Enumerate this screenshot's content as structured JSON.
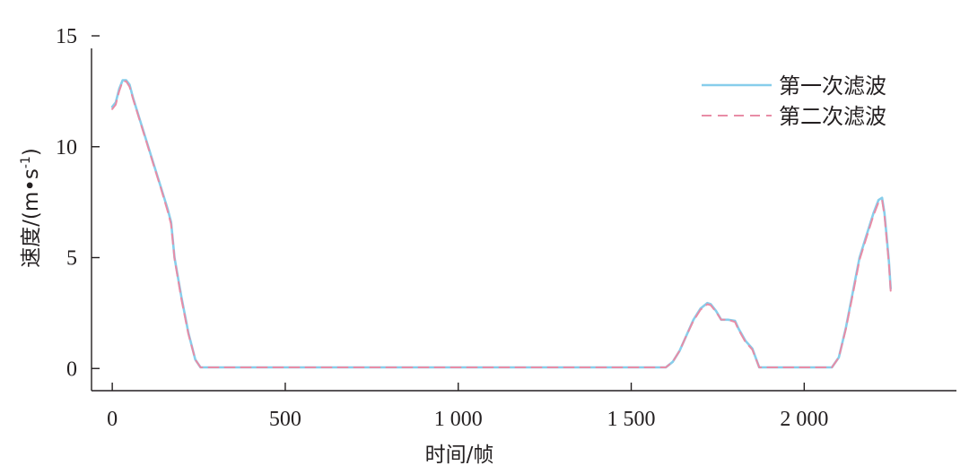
{
  "chart_data": {
    "type": "line",
    "title": "",
    "xlabel": "时间/帧",
    "ylabel": "速度/(m•s-1)",
    "ylabel_main": "速度/(m•s",
    "ylabel_sup": "-1",
    "ylabel_end": ")",
    "xlim": [
      -60,
      2440
    ],
    "ylim": [
      -1,
      15
    ],
    "xticks": [
      0,
      500,
      1000,
      1500,
      2000
    ],
    "xtick_labels": [
      "0",
      "500",
      "1 000",
      "1 500",
      "2 000"
    ],
    "yticks": [
      0,
      5,
      10,
      15
    ],
    "ytick_labels": [
      "0",
      "5",
      "10",
      "15"
    ],
    "grid": false,
    "legend_position": "top-right",
    "series": [
      {
        "name": "第一次滤波",
        "color": "#87ceeb",
        "style": "solid",
        "x": [
          0,
          10,
          20,
          30,
          40,
          50,
          60,
          80,
          100,
          120,
          140,
          160,
          170,
          180,
          200,
          220,
          240,
          255,
          270,
          300,
          500,
          1000,
          1500,
          1600,
          1620,
          1640,
          1660,
          1680,
          1700,
          1720,
          1730,
          1745,
          1760,
          1780,
          1800,
          1810,
          1830,
          1850,
          1870,
          1890,
          2000,
          2080,
          2100,
          2120,
          2140,
          2160,
          2180,
          2200,
          2215,
          2225,
          2232,
          2238,
          2245,
          2250
        ],
        "y": [
          11.8,
          12.0,
          12.6,
          13.0,
          13.0,
          12.8,
          12.2,
          11.2,
          10.2,
          9.2,
          8.2,
          7.2,
          6.6,
          5.0,
          3.2,
          1.6,
          0.4,
          0.05,
          0.05,
          0.05,
          0.05,
          0.05,
          0.05,
          0.05,
          0.3,
          0.8,
          1.5,
          2.2,
          2.7,
          2.95,
          2.9,
          2.6,
          2.2,
          2.2,
          2.15,
          1.8,
          1.25,
          0.9,
          0.05,
          0.05,
          0.05,
          0.05,
          0.5,
          1.8,
          3.4,
          5.0,
          6.0,
          7.0,
          7.6,
          7.7,
          7.0,
          6.0,
          4.8,
          3.6
        ]
      },
      {
        "name": "第二次滤波",
        "color": "#e88ca6",
        "style": "dashed",
        "x": [
          0,
          10,
          20,
          30,
          40,
          50,
          60,
          80,
          100,
          120,
          140,
          160,
          170,
          180,
          200,
          220,
          240,
          255,
          270,
          300,
          500,
          1000,
          1500,
          1600,
          1620,
          1640,
          1660,
          1680,
          1700,
          1720,
          1730,
          1745,
          1760,
          1780,
          1800,
          1810,
          1830,
          1850,
          1870,
          1890,
          2000,
          2080,
          2100,
          2120,
          2140,
          2160,
          2180,
          2200,
          2215,
          2225,
          2232,
          2238,
          2245,
          2250
        ],
        "y": [
          11.7,
          11.9,
          12.5,
          12.95,
          12.95,
          12.7,
          12.15,
          11.15,
          10.15,
          9.15,
          8.15,
          7.1,
          6.5,
          4.95,
          3.1,
          1.55,
          0.4,
          0.05,
          0.05,
          0.05,
          0.05,
          0.05,
          0.05,
          0.05,
          0.3,
          0.8,
          1.5,
          2.15,
          2.65,
          2.9,
          2.85,
          2.55,
          2.2,
          2.2,
          2.1,
          1.75,
          1.2,
          0.85,
          0.05,
          0.05,
          0.05,
          0.05,
          0.5,
          1.75,
          3.3,
          4.9,
          5.9,
          6.9,
          7.5,
          7.6,
          6.9,
          5.9,
          4.7,
          3.5
        ]
      }
    ]
  }
}
